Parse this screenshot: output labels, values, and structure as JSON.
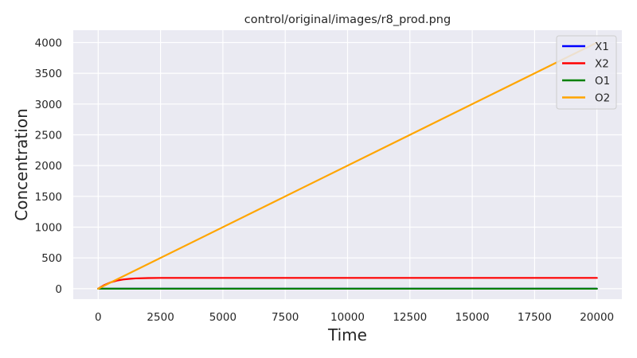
{
  "chart_data": {
    "type": "line",
    "title": "control/original/images/r8_prod.png",
    "xlabel": "Time",
    "ylabel": "Concentration",
    "xlim": [
      -1000,
      21000
    ],
    "ylim": [
      -170,
      4200
    ],
    "x_ticks": [
      0,
      2500,
      5000,
      7500,
      10000,
      12500,
      15000,
      17500,
      20000
    ],
    "y_ticks": [
      0,
      500,
      1000,
      1500,
      2000,
      2500,
      3000,
      3500,
      4000
    ],
    "grid": true,
    "legend_position": "upper-right",
    "series": [
      {
        "name": "X1",
        "color": "#0000ff",
        "x": [
          0,
          20000
        ],
        "y": [
          0,
          0
        ]
      },
      {
        "name": "X2",
        "color": "#ff0000",
        "x": [
          0,
          250,
          500,
          750,
          1000,
          1250,
          1500,
          2000,
          2500,
          3000,
          5000,
          10000,
          15000,
          20000
        ],
        "y": [
          0,
          60,
          103,
          131,
          149,
          160,
          167,
          173,
          175,
          175,
          175,
          175,
          175,
          175
        ]
      },
      {
        "name": "O1",
        "color": "#008000",
        "x": [
          0,
          20000
        ],
        "y": [
          0,
          0
        ]
      },
      {
        "name": "O2",
        "color": "#ffa500",
        "x": [
          0,
          20000
        ],
        "y": [
          0,
          4000
        ]
      }
    ]
  }
}
